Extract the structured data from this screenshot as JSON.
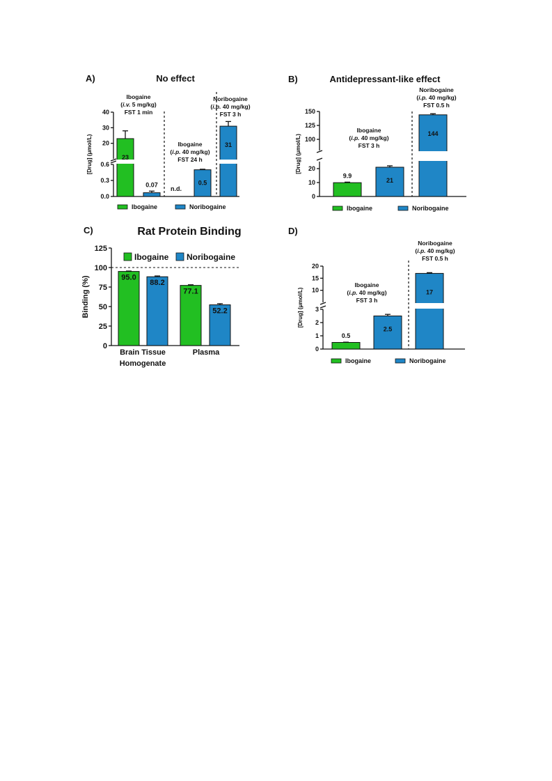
{
  "colors": {
    "ibogaine": "#22bf22",
    "noribogaine": "#1f86c6",
    "axis": "#111111"
  },
  "chart_data": [
    {
      "id": "A",
      "letter": "A)",
      "title": "No effect",
      "type": "bar",
      "ylabel": "[Drug] (μmol/L)",
      "axis_segments": [
        {
          "ylim": [
            0,
            0.6
          ],
          "ticks": [
            "0.0",
            "0.3",
            "0.6"
          ],
          "tick_values": [
            0,
            0.3,
            0.6
          ]
        },
        {
          "ylim": [
            10,
            40
          ],
          "ticks": [
            "20",
            "30",
            "40"
          ],
          "tick_values": [
            20,
            30,
            40
          ]
        }
      ],
      "bars": [
        {
          "series": "Ibogaine",
          "value": 23,
          "error": 5,
          "label": "23"
        },
        {
          "series": "Noribogaine",
          "value": 0.07,
          "error": 0.03,
          "label": "0.07"
        },
        {
          "series": "Ibogaine",
          "value": 0,
          "error": 0,
          "label": "n.d."
        },
        {
          "series": "Noribogaine",
          "value": 0.5,
          "error": 0.01,
          "label": "0.5"
        },
        {
          "series": "Noribogaine",
          "value": 31,
          "error": 3,
          "label": "31"
        }
      ],
      "annotations": [
        [
          "Ibogaine",
          "(i.v. 5 mg/kg)",
          "FST 1 min"
        ],
        [
          "Ibogaine",
          "(i.p. 40 mg/kg)",
          "FST 24 h"
        ],
        [
          "Noribogaine",
          "(i.p. 40 mg/kg)",
          "FST 3 h"
        ]
      ],
      "legend": [
        "Ibogaine",
        "Noribogaine"
      ]
    },
    {
      "id": "B",
      "letter": "B)",
      "title": "Antidepressant-like effect",
      "type": "bar",
      "ylabel": "[Drug] (μmol/L)",
      "axis_segments": [
        {
          "ylim": [
            0,
            25
          ],
          "ticks": [
            "0",
            "10",
            "20"
          ],
          "tick_values": [
            0,
            10,
            20
          ]
        },
        {
          "ylim": [
            80,
            150
          ],
          "ticks": [
            "100",
            "125",
            "150"
          ],
          "tick_values": [
            100,
            125,
            150
          ]
        }
      ],
      "bars": [
        {
          "series": "Ibogaine",
          "value": 9.9,
          "error": 0.4,
          "label": "9.9"
        },
        {
          "series": "Noribogaine",
          "value": 21,
          "error": 1,
          "label": "21"
        },
        {
          "series": "Noribogaine",
          "value": 144,
          "error": 2,
          "label": "144"
        }
      ],
      "annotations": [
        [
          "Ibogaine",
          "(i.p. 40 mg/kg)",
          "FST 3 h"
        ],
        [
          "Noribogaine",
          "(i.p. 40 mg/kg)",
          "FST 0.5 h"
        ]
      ],
      "legend": [
        "Ibogaine",
        "Noribogaine"
      ]
    },
    {
      "id": "C",
      "letter": "C)",
      "title": "Rat Protein Binding",
      "type": "bar",
      "ylabel": "Binding (%)",
      "ylim": [
        0,
        125
      ],
      "ticks": [
        "0",
        "25",
        "50",
        "75",
        "100",
        "125"
      ],
      "tick_values": [
        0,
        25,
        50,
        75,
        100,
        125
      ],
      "categories": [
        [
          "Brain Tissue",
          "Homogenate"
        ],
        [
          "Plasma"
        ]
      ],
      "series": [
        {
          "name": "Ibogaine",
          "values": [
            95.0,
            77.1
          ],
          "errors": [
            0.5,
            0.8
          ],
          "labels": [
            "95.0",
            "77.1"
          ]
        },
        {
          "name": "Noribogaine",
          "values": [
            88.2,
            52.2
          ],
          "errors": [
            1.0,
            1.5
          ],
          "labels": [
            "88.2",
            "52.2"
          ]
        }
      ],
      "reference_line": 100,
      "legend": [
        "Ibogaine",
        "Noribogaine"
      ]
    },
    {
      "id": "D",
      "letter": "D)",
      "title": "",
      "type": "bar",
      "ylabel": "[Drug] (μmol/L)",
      "axis_segments": [
        {
          "ylim": [
            0,
            3
          ],
          "ticks": [
            "0",
            "1",
            "2",
            "3"
          ],
          "tick_values": [
            0,
            1,
            2,
            3
          ]
        },
        {
          "ylim": [
            5,
            20
          ],
          "ticks": [
            "10",
            "15",
            "20"
          ],
          "tick_values": [
            10,
            15,
            20
          ]
        }
      ],
      "bars": [
        {
          "series": "Ibogaine",
          "value": 0.5,
          "error": 0.02,
          "label": "0.5"
        },
        {
          "series": "Noribogaine",
          "value": 2.5,
          "error": 0.12,
          "label": "2.5"
        },
        {
          "series": "Noribogaine",
          "value": 17,
          "error": 0.3,
          "label": "17"
        }
      ],
      "annotations": [
        [
          "Ibogaine",
          "(i.p. 40 mg/kg)",
          "FST 3 h"
        ],
        [
          "Noribogaine",
          "(i.p. 40 mg/kg)",
          "FST 0.5 h"
        ]
      ],
      "legend": [
        "Ibogaine",
        "Noribogaine"
      ]
    }
  ]
}
